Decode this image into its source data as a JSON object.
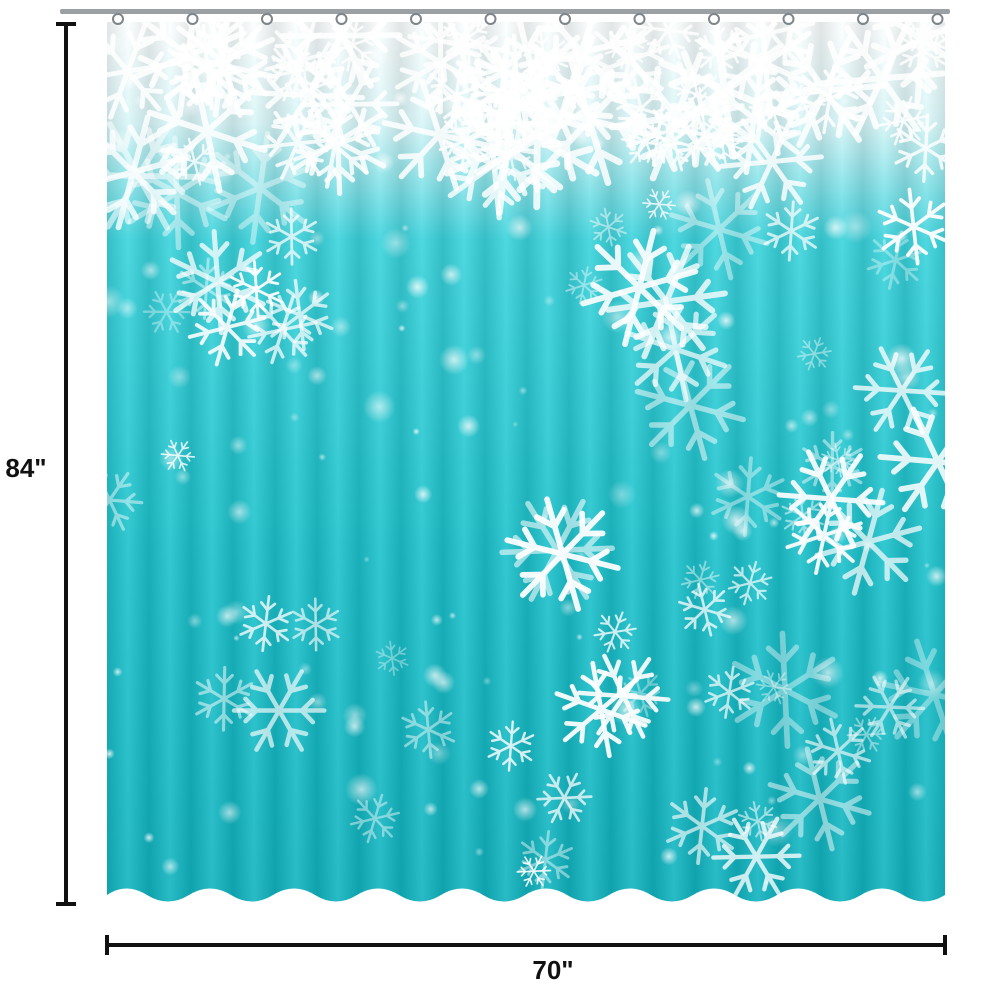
{
  "dimensions": {
    "height": "84\"",
    "width": "70\""
  }
}
